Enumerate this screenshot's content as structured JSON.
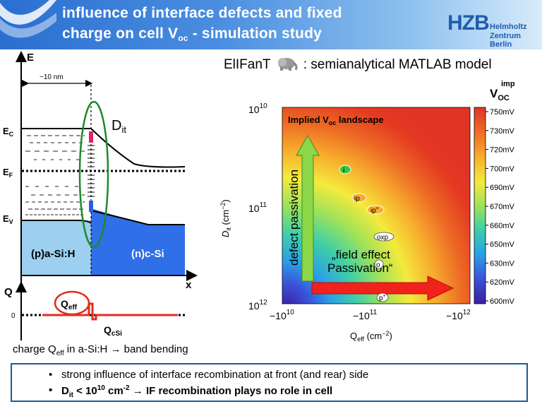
{
  "header": {
    "title_line1": "influence of interface defects and fixed",
    "title_line2_prefix": "charge on cell V",
    "title_line2_sub": "oc",
    "title_line2_suffix": " - simulation study"
  },
  "logo": {
    "name": "HZB",
    "line1": "Helmholtz",
    "line2": "Zentrum Berlin"
  },
  "band_diagram": {
    "axis_e": "E",
    "axis_x": "x",
    "width_label": "~10 nm",
    "ec": "E",
    "ec_sub": "C",
    "ef": "E",
    "ef_sub": "F",
    "ev": "E",
    "ev_sub": "V",
    "dit": "D",
    "dit_sub": "it",
    "asi_label": "(p)a-Si:H",
    "csi_label": "(n)c-Si"
  },
  "charge_plot": {
    "axis_q": "Q",
    "zero": "0",
    "qeff": "Q",
    "qeff_sub": "eff",
    "qcsi": "Q",
    "qcsi_sub": "cSi"
  },
  "charge_caption": {
    "pre": "charge Q",
    "sub": "eff",
    "post": " in a-Si:H → band bending"
  },
  "model": {
    "name": "ElIFanT",
    "icon": "elephant-icon",
    "description": ": semianalytical MATLAB model"
  },
  "heatmap": {
    "inner_title": "Implied V",
    "inner_title_sub": "oc",
    "inner_title_suffix": "  landscape",
    "ylabel": "D",
    "ylabel_sub": "it",
    "ylabel_unit": " (cm",
    "ylabel_unit_sup": "−2",
    "ylabel_unit_close": ")",
    "xlabel": "Q",
    "xlabel_sub": "eff",
    "xlabel_unit": " (cm",
    "xlabel_unit_sup": "−2",
    "xlabel_unit_close": ")",
    "y_ticks": [
      {
        "base": "10",
        "exp": "10"
      },
      {
        "base": "10",
        "exp": "11"
      },
      {
        "base": "10",
        "exp": "12"
      }
    ],
    "x_ticks": [
      {
        "base": "−10",
        "exp": "10"
      },
      {
        "base": "−10",
        "exp": "11"
      },
      {
        "base": "−10",
        "exp": "12"
      }
    ],
    "arrow_v_label": "defect passivation",
    "arrow_h_label_1": "„field effect",
    "arrow_h_label_2": "Passivation“",
    "markers": [
      "i",
      "ip",
      "ip",
      "oxp",
      "o",
      "p"
    ],
    "marker_sups": [
      "",
      "",
      "+",
      "",
      "",
      "+"
    ],
    "colorbar_title": "V",
    "colorbar_title_sub": "OC",
    "colorbar_title_sup": "imp",
    "colorbar_ticks": [
      "750mV",
      "730mV",
      "720mV",
      "700mV",
      "690mV",
      "670mV",
      "660mV",
      "650mV",
      "630mV",
      "620mV",
      "600mV"
    ]
  },
  "bullets": [
    {
      "text": "strong influence of interface recombination at front (and rear) side"
    },
    {
      "pre": "D",
      "sub": "it",
      "mid": " < 10",
      "sup": "10",
      "mid2": " cm",
      "sup2": "-2",
      "post": " → IF recombination plays no role in cell"
    }
  ],
  "colors": {
    "accent": "#1f5a99",
    "asi": "#9dcff0",
    "csi": "#2f6fe8",
    "ellipse": "#1c8a2e",
    "red": "#e32b1f"
  }
}
